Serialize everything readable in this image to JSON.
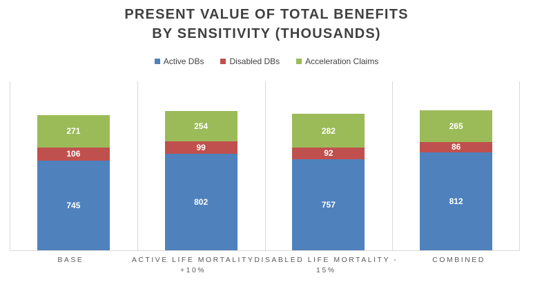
{
  "header": {
    "title_line1": "PRESENT VALUE OF TOTAL BENEFITS",
    "title_line2": "BY SENSITIVITY (THOUSANDS)"
  },
  "colors": {
    "background": "#FFFFFF",
    "title_text": "#404040",
    "legend_text": "#404040",
    "axis_text": "#595959",
    "gridline": "#D9D9D9",
    "data_label_text": "#FFFFFF",
    "series_blue": "#4F81BD",
    "series_red": "#C0504D",
    "series_green": "#9BBB59"
  },
  "chart_data": {
    "type": "bar",
    "stacked": true,
    "title": "Present Value of Total Benefits by Sensitivity (Thousands)",
    "categories": [
      "Base",
      "Active Life Mortality +10%",
      "Disabled Life Mortality - 15%",
      "Combined"
    ],
    "category_label_lines": [
      [
        "BASE"
      ],
      [
        "ACTIVE LIFE MORTALITY",
        "+10%"
      ],
      [
        "DISABLED LIFE MORTALITY -",
        "15%"
      ],
      [
        "COMBINED"
      ]
    ],
    "series": [
      {
        "name": "Active DBs",
        "color": "#4F81BD",
        "values": [
          745,
          802,
          757,
          812
        ]
      },
      {
        "name": "Disabled DBs",
        "color": "#C0504D",
        "values": [
          106,
          99,
          92,
          86
        ]
      },
      {
        "name": "Acceleration Claims",
        "color": "#9BBB59",
        "values": [
          271,
          254,
          282,
          265
        ]
      }
    ],
    "data_labels": true,
    "legend_position": "top",
    "gridlines": "vertical",
    "xlabel": "",
    "ylabel": "",
    "ylim": [
      0,
      1400
    ],
    "y_axis_visible": false
  }
}
